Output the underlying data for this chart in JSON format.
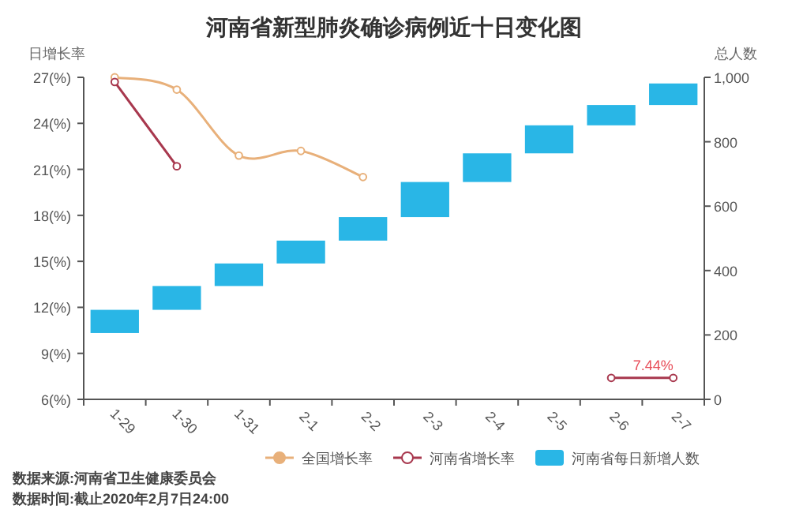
{
  "chart_data": {
    "type": "bar",
    "title": "河南省新型肺炎确诊病例近十日变化图",
    "ylabel": "日增长率",
    "y2label": "总人数",
    "categories": [
      "1-29",
      "1-30",
      "1-31",
      "2-1",
      "2-2",
      "2-3",
      "2-4",
      "2-5",
      "2-6",
      "2-7"
    ],
    "series": [
      {
        "name": "全国增长率",
        "type": "line",
        "color": "#e8b07a",
        "values": [
          27.0,
          26.2,
          21.9,
          22.2,
          20.5,
          null,
          null,
          null,
          null,
          null
        ]
      },
      {
        "name": "河南省增长率",
        "type": "line",
        "color": "#a8384e",
        "values": [
          26.7,
          21.2,
          null,
          null,
          null,
          null,
          null,
          null,
          7.4,
          7.4
        ]
      },
      {
        "name": "河南省每日新增人数",
        "axis": "y2",
        "color": "#29b6e6",
        "base": [
          206,
          278,
          352,
          422,
          493,
          566,
          675,
          764,
          851,
          914
        ],
        "values": [
          72,
          74,
          70,
          71,
          73,
          109,
          89,
          87,
          63,
          67
        ]
      }
    ],
    "ylim": [
      6,
      27
    ],
    "yticks": [
      {
        "value": 6,
        "label": "6(%)"
      },
      {
        "value": 9,
        "label": "9(%)"
      },
      {
        "value": 12,
        "label": "12(%)"
      },
      {
        "value": 15,
        "label": "15(%)"
      },
      {
        "value": 18,
        "label": "18(%)"
      },
      {
        "value": 21,
        "label": "21(%)"
      },
      {
        "value": 24,
        "label": "24(%)"
      },
      {
        "value": 27,
        "label": "27(%)"
      }
    ],
    "y2lim": [
      0,
      1000
    ],
    "y2ticks": [
      0,
      200,
      400,
      600,
      800,
      {
        "value": 1000,
        "label": "1,000"
      }
    ],
    "marker": "circle",
    "grid": false,
    "legend": "bottom right",
    "annotations": [
      {
        "text": "7.44%",
        "x": "2-7",
        "y": 7.4
      },
      "数据来源:河南省卫生健康委员会",
      "数据时间:截止2020年2月7日24:00"
    ]
  }
}
